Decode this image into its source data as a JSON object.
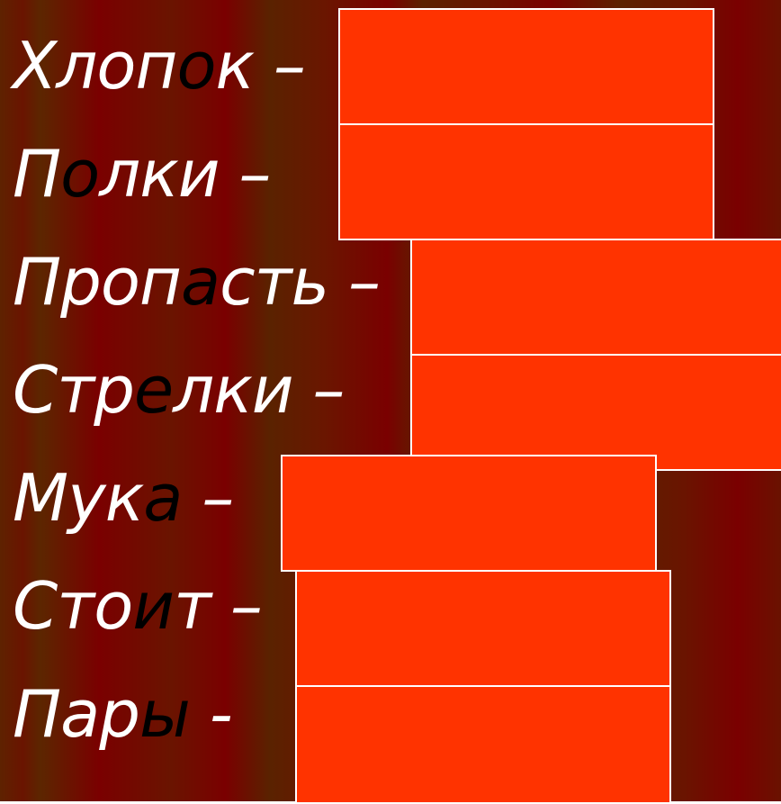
{
  "rows": [
    {
      "before": "Хлоп",
      "accent": "о",
      "after": "к –"
    },
    {
      "before": "П",
      "accent": "о",
      "after": "лки –"
    },
    {
      "before": "Проп",
      "accent": "а",
      "after": "сть –"
    },
    {
      "before": "Стр",
      "accent": "е",
      "after": "лки –"
    },
    {
      "before": "Мук",
      "accent": "а",
      "after": " –"
    },
    {
      "before": "Сто",
      "accent": "и",
      "after": "т –"
    },
    {
      "before": "Пар",
      "accent": "ы",
      "after": " -"
    }
  ],
  "colors": {
    "text": "#ffffff",
    "accent_letter": "#000000",
    "answer_box": "#ff3300",
    "box_border": "#ffffff"
  }
}
